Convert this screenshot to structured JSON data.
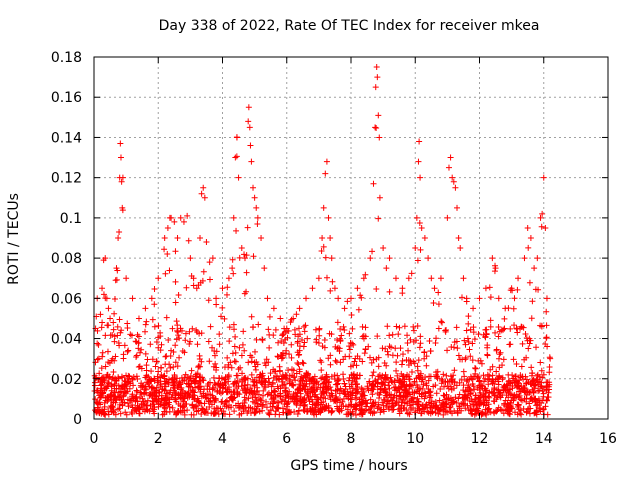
{
  "chart_data": {
    "type": "scatter",
    "title": "Day 338 of 2022, Rate Of TEC Index for receiver mkea",
    "xlabel": "GPS time / hours",
    "ylabel": "ROTI / TECUs",
    "xlim": [
      0,
      16
    ],
    "ylim": [
      0,
      0.18
    ],
    "xticks": [
      0,
      2,
      4,
      6,
      8,
      10,
      12,
      14,
      16
    ],
    "yticks": [
      0,
      0.02,
      0.04,
      0.06,
      0.08,
      0.1,
      0.12,
      0.14,
      0.16,
      0.18
    ],
    "xtick_labels": [
      "0",
      "2",
      "4",
      "6",
      "8",
      "10",
      "12",
      "14",
      "16"
    ],
    "ytick_labels": [
      "0",
      "0.02",
      "0.04",
      "0.06",
      "0.08",
      "0.1",
      "0.12",
      "0.14",
      "0.16",
      "0.18"
    ],
    "grid": true,
    "marker": "+",
    "color": "#ff0000",
    "data_range_hours": [
      0,
      14.2
    ],
    "series": [
      {
        "name": "ROTI",
        "points": [
          [
            0.05,
            0.045
          ],
          [
            0.1,
            0.06
          ],
          [
            0.15,
            0.03
          ],
          [
            0.2,
            0.052
          ],
          [
            0.25,
            0.065
          ],
          [
            0.3,
            0.079
          ],
          [
            0.35,
            0.08
          ],
          [
            0.4,
            0.06
          ],
          [
            0.45,
            0.055
          ],
          [
            0.5,
            0.05
          ],
          [
            0.6,
            0.048
          ],
          [
            0.7,
            0.075
          ],
          [
            0.75,
            0.09
          ],
          [
            0.78,
            0.093
          ],
          [
            0.8,
            0.12
          ],
          [
            0.82,
            0.137
          ],
          [
            0.84,
            0.13
          ],
          [
            0.86,
            0.118
          ],
          [
            0.88,
            0.105
          ],
          [
            0.9,
            0.12
          ],
          [
            1.0,
            0.07
          ],
          [
            1.2,
            0.06
          ],
          [
            1.4,
            0.05
          ],
          [
            1.6,
            0.055
          ],
          [
            1.8,
            0.06
          ],
          [
            2.0,
            0.07
          ],
          [
            2.2,
            0.09
          ],
          [
            2.3,
            0.095
          ],
          [
            2.4,
            0.1
          ],
          [
            2.5,
            0.098
          ],
          [
            2.6,
            0.09
          ],
          [
            2.7,
            0.1
          ],
          [
            2.8,
            0.098
          ],
          [
            2.9,
            0.101
          ],
          [
            3.0,
            0.08
          ],
          [
            3.1,
            0.07
          ],
          [
            3.2,
            0.065
          ],
          [
            3.3,
            0.09
          ],
          [
            3.35,
            0.112
          ],
          [
            3.4,
            0.115
          ],
          [
            3.45,
            0.11
          ],
          [
            3.5,
            0.088
          ],
          [
            3.6,
            0.078
          ],
          [
            3.7,
            0.08
          ],
          [
            3.8,
            0.06
          ],
          [
            4.0,
            0.065
          ],
          [
            4.2,
            0.07
          ],
          [
            4.3,
            0.075
          ],
          [
            4.35,
            0.1
          ],
          [
            4.4,
            0.13
          ],
          [
            4.45,
            0.14
          ],
          [
            4.5,
            0.12
          ],
          [
            4.6,
            0.085
          ],
          [
            4.7,
            0.08
          ],
          [
            4.8,
            0.148
          ],
          [
            4.82,
            0.155
          ],
          [
            4.85,
            0.145
          ],
          [
            4.87,
            0.136
          ],
          [
            4.9,
            0.128
          ],
          [
            4.95,
            0.115
          ],
          [
            5.0,
            0.11
          ],
          [
            5.05,
            0.105
          ],
          [
            5.1,
            0.1
          ],
          [
            5.2,
            0.09
          ],
          [
            5.3,
            0.075
          ],
          [
            5.4,
            0.06
          ],
          [
            5.6,
            0.055
          ],
          [
            5.8,
            0.05
          ],
          [
            6.0,
            0.045
          ],
          [
            6.2,
            0.05
          ],
          [
            6.4,
            0.055
          ],
          [
            6.6,
            0.06
          ],
          [
            6.8,
            0.065
          ],
          [
            7.0,
            0.07
          ],
          [
            7.1,
            0.09
          ],
          [
            7.15,
            0.105
          ],
          [
            7.2,
            0.122
          ],
          [
            7.25,
            0.128
          ],
          [
            7.3,
            0.1
          ],
          [
            7.35,
            0.09
          ],
          [
            7.4,
            0.08
          ],
          [
            7.5,
            0.065
          ],
          [
            7.6,
            0.06
          ],
          [
            7.8,
            0.055
          ],
          [
            8.0,
            0.06
          ],
          [
            8.2,
            0.065
          ],
          [
            8.4,
            0.07
          ],
          [
            8.6,
            0.08
          ],
          [
            8.7,
            0.117
          ],
          [
            8.75,
            0.145
          ],
          [
            8.77,
            0.165
          ],
          [
            8.8,
            0.175
          ],
          [
            8.82,
            0.17
          ],
          [
            8.85,
            0.151
          ],
          [
            8.88,
            0.14
          ],
          [
            8.9,
            0.11
          ],
          [
            9.0,
            0.085
          ],
          [
            9.1,
            0.075
          ],
          [
            9.2,
            0.08
          ],
          [
            9.4,
            0.07
          ],
          [
            9.6,
            0.065
          ],
          [
            9.8,
            0.07
          ],
          [
            10.0,
            0.085
          ],
          [
            10.05,
            0.1
          ],
          [
            10.1,
            0.128
          ],
          [
            10.12,
            0.138
          ],
          [
            10.15,
            0.12
          ],
          [
            10.2,
            0.095
          ],
          [
            10.3,
            0.09
          ],
          [
            10.4,
            0.08
          ],
          [
            10.5,
            0.07
          ],
          [
            10.6,
            0.065
          ],
          [
            10.8,
            0.07
          ],
          [
            11.0,
            0.1
          ],
          [
            11.05,
            0.125
          ],
          [
            11.1,
            0.13
          ],
          [
            11.15,
            0.12
          ],
          [
            11.2,
            0.118
          ],
          [
            11.25,
            0.115
          ],
          [
            11.3,
            0.105
          ],
          [
            11.35,
            0.09
          ],
          [
            11.4,
            0.085
          ],
          [
            11.5,
            0.07
          ],
          [
            11.6,
            0.06
          ],
          [
            11.8,
            0.055
          ],
          [
            12.0,
            0.06
          ],
          [
            12.2,
            0.065
          ],
          [
            12.4,
            0.08
          ],
          [
            12.5,
            0.075
          ],
          [
            12.6,
            0.06
          ],
          [
            12.8,
            0.055
          ],
          [
            13.0,
            0.065
          ],
          [
            13.2,
            0.07
          ],
          [
            13.4,
            0.08
          ],
          [
            13.5,
            0.095
          ],
          [
            13.6,
            0.09
          ],
          [
            13.7,
            0.075
          ],
          [
            13.8,
            0.08
          ],
          [
            13.9,
            0.1
          ],
          [
            13.95,
            0.102
          ],
          [
            14.0,
            0.12
          ],
          [
            14.05,
            0.095
          ],
          [
            14.1,
            0.06
          ],
          [
            14.2,
            0.03
          ]
        ]
      }
    ]
  }
}
